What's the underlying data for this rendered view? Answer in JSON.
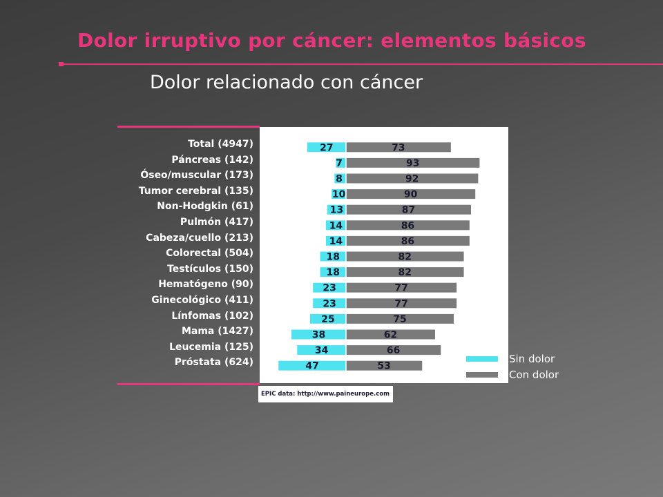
{
  "slide": {
    "title": "Dolor irruptivo por cáncer: elementos básicos",
    "subtitle": "Dolor relacionado con cáncer",
    "source": "EPIC data: http://www.paineurope.com"
  },
  "colors": {
    "accent": "#e8357b",
    "sin_dolor": "#4fe3f0",
    "con_dolor": "#7a7a7a",
    "bar_text": "#1a1a2e"
  },
  "chart_data": {
    "type": "bar",
    "orientation": "horizontal-diverging",
    "categories": [
      "Total (4947)",
      "Páncreas (142)",
      "Óseo/muscular (173)",
      "Tumor cerebral (135)",
      "Non-Hodgkin (61)",
      "Pulmón (417)",
      "Cabeza/cuello (213)",
      "Colorectal (504)",
      "Testículos (150)",
      "Hematógeno (90)",
      "Ginecológico (411)",
      "Línfomas (102)",
      "Mama (1427)",
      "Leucemia (125)",
      "Próstata (624)"
    ],
    "series": [
      {
        "name": "Sin dolor",
        "values": [
          27,
          7,
          8,
          10,
          13,
          14,
          14,
          18,
          18,
          23,
          23,
          25,
          38,
          34,
          47
        ]
      },
      {
        "name": "Con dolor",
        "values": [
          73,
          93,
          92,
          90,
          87,
          86,
          86,
          82,
          82,
          77,
          77,
          75,
          62,
          66,
          53
        ]
      }
    ],
    "legend": {
      "position": "bottom-right",
      "entries": [
        "Sin dolor",
        "Con dolor"
      ]
    },
    "grid": false
  }
}
